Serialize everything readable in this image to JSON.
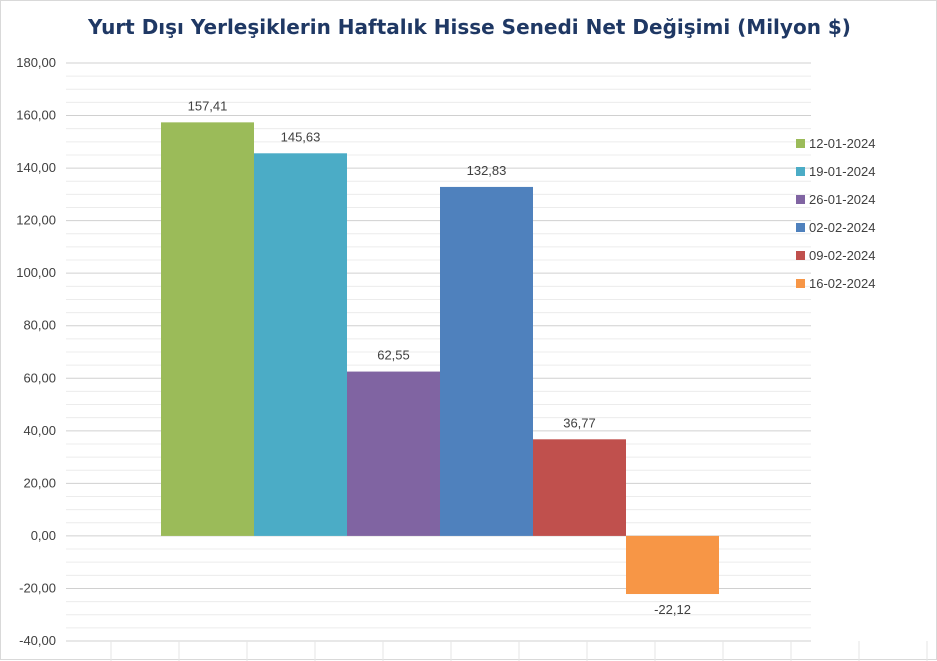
{
  "chart_data": {
    "type": "bar",
    "title": "Yurt Dışı Yerleşiklerin Haftalık Hisse Senedi Net Değişimi (Milyon $)",
    "xlabel": "",
    "ylabel": "",
    "ylim": [
      -40,
      180
    ],
    "y_ticks": [
      "180,00",
      "160,00",
      "140,00",
      "120,00",
      "100,00",
      "80,00",
      "60,00",
      "40,00",
      "20,00",
      "0,00",
      "-20,00",
      "-40,00"
    ],
    "y_tick_values": [
      180,
      160,
      140,
      120,
      100,
      80,
      60,
      40,
      20,
      0,
      -20,
      -40
    ],
    "categories": [
      "12-01-2024",
      "19-01-2024",
      "26-01-2024",
      "02-02-2024",
      "09-02-2024",
      "16-02-2024"
    ],
    "series": [
      {
        "name": "12-01-2024",
        "value": 157.41,
        "label": "157,41",
        "color": "#9bbb59"
      },
      {
        "name": "19-01-2024",
        "value": 145.63,
        "label": "145,63",
        "color": "#4bacc6"
      },
      {
        "name": "26-01-2024",
        "value": 62.55,
        "label": "62,55",
        "color": "#8064a2"
      },
      {
        "name": "02-02-2024",
        "value": 132.83,
        "label": "132,83",
        "color": "#4f81bd"
      },
      {
        "name": "09-02-2024",
        "value": 36.77,
        "label": "36,77",
        "color": "#c0504d"
      },
      {
        "name": "16-02-2024",
        "value": -22.12,
        "label": "-22,12",
        "color": "#f79646"
      }
    ],
    "grid": true,
    "legend_position": "right"
  }
}
